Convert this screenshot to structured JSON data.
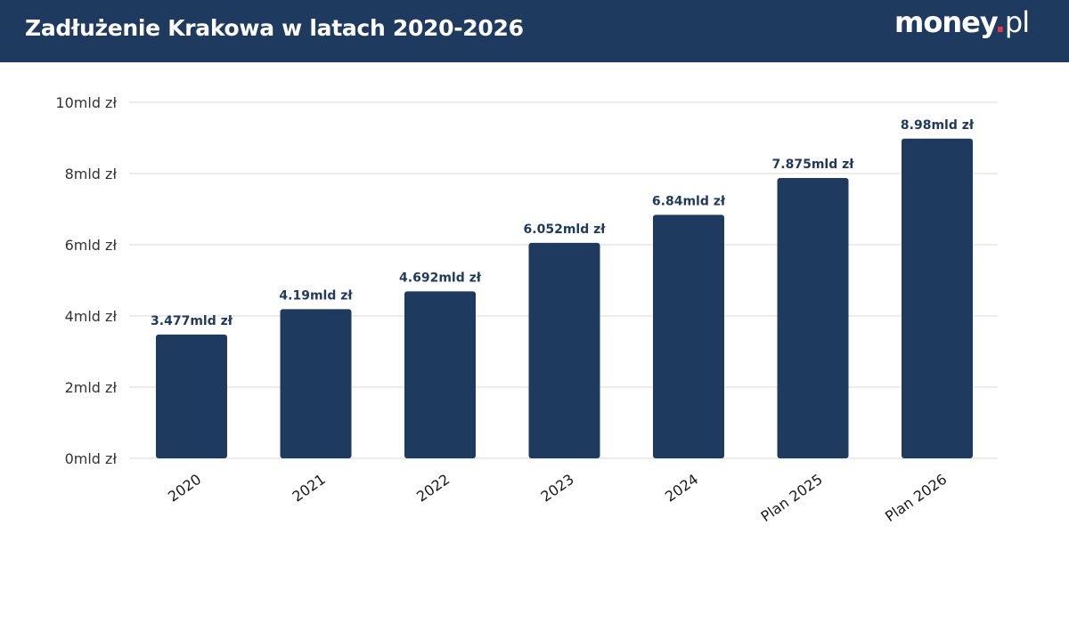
{
  "header": {
    "title": "Zadłużenie Krakowa w latach 2020-2026",
    "logo_main": "money",
    "logo_dot": ".",
    "logo_tld": "pl"
  },
  "colors": {
    "header_bg": "#1f3a5f",
    "bar": "#1f3a5f",
    "logo_dot": "#e8354a",
    "grid": "#e5e5e5"
  },
  "chart_data": {
    "type": "bar",
    "title": "Zadłużenie Krakowa w latach 2020-2026",
    "categories": [
      "2020",
      "2021",
      "2022",
      "2023",
      "2024",
      "Plan 2025",
      "Plan 2026"
    ],
    "values": [
      3.477,
      4.19,
      4.692,
      6.052,
      6.84,
      7.875,
      8.98
    ],
    "data_labels": [
      "3.477mld zł",
      "4.19mld zł",
      "4.692mld zł",
      "6.052mld zł",
      "6.84mld zł",
      "7.875mld zł",
      "8.98mld zł"
    ],
    "y_ticks": [
      0,
      2,
      4,
      6,
      8,
      10
    ],
    "y_tick_labels": [
      "0mld zł",
      "2mld zł",
      "4mld zł",
      "6mld zł",
      "8mld zł",
      "10mld zł"
    ],
    "ylim": [
      0,
      10
    ],
    "unit": "mld zł",
    "grid": true,
    "legend": "none"
  }
}
